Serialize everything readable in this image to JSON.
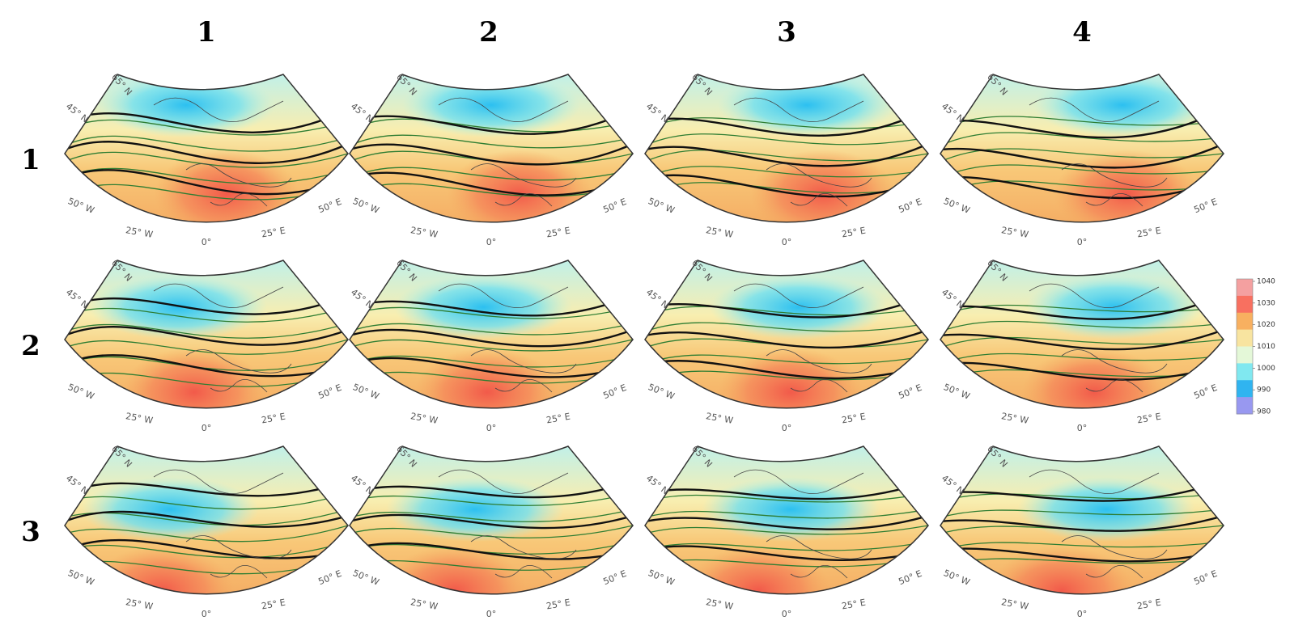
{
  "column_labels": [
    "1",
    "2",
    "3",
    "4"
  ],
  "row_labels": [
    "1",
    "2",
    "3"
  ],
  "map_labels": [
    "65° N",
    "45° N",
    "50° W",
    "25° W",
    "0°",
    "25° E",
    "50° E"
  ],
  "colorbar": {
    "ticks": [
      1040,
      1030,
      1020,
      1010,
      1000,
      990,
      980
    ],
    "lim": [
      980,
      1040
    ],
    "colors": [
      "#f4a0a0",
      "#f87060",
      "#f8b060",
      "#f8e4a0",
      "#e4f8d8",
      "#80e8f0",
      "#30b4f0",
      "#9898f0"
    ]
  }
}
